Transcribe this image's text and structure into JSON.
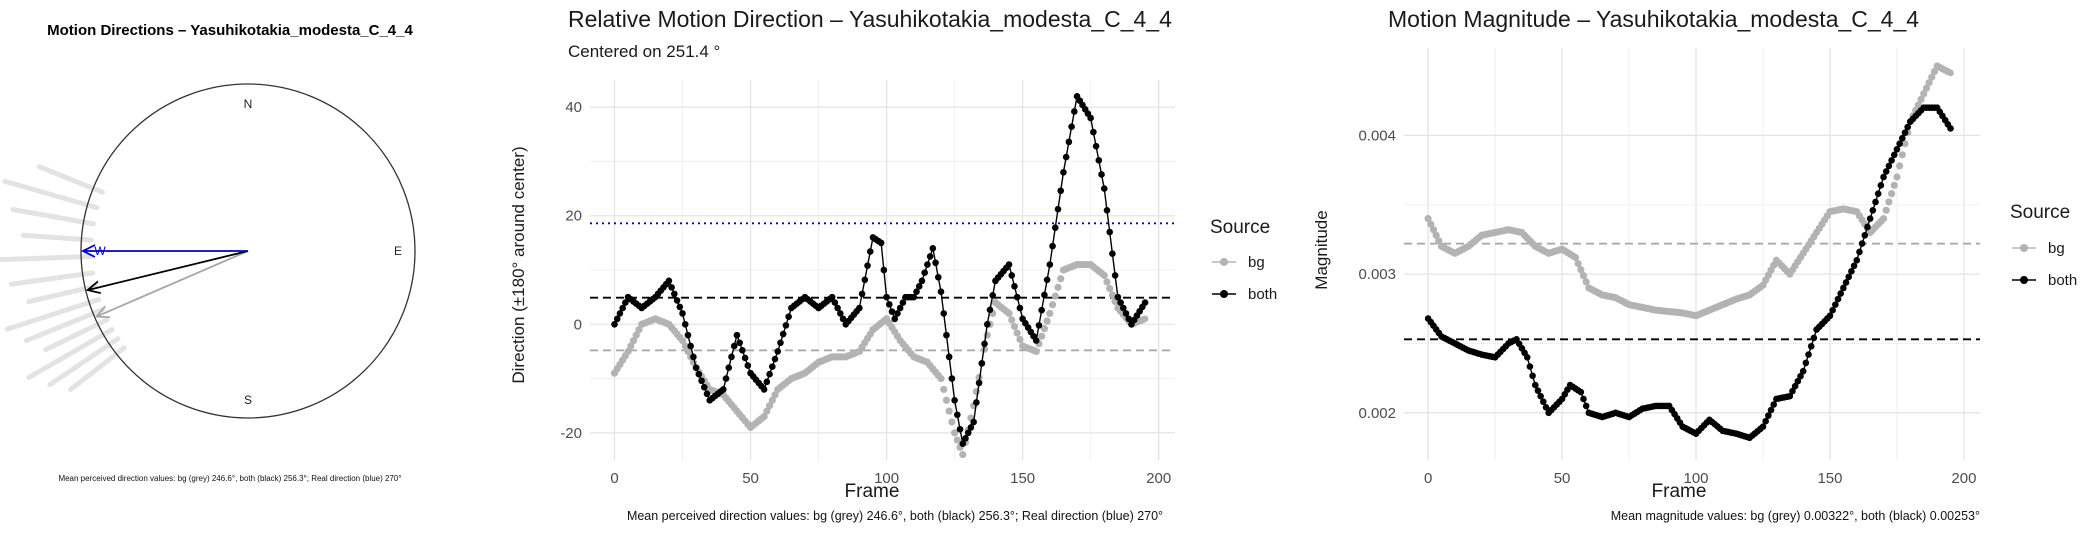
{
  "compass": {
    "title": "Motion Directions – Yasuhikotakia_modesta_C_4_4",
    "labels": {
      "north": "N",
      "east": "E",
      "south": "S",
      "west": "W"
    },
    "mean_bg_deg": 246.6,
    "mean_both_deg": 256.3,
    "real_deg": 270,
    "caption": "Mean perceived direction values: bg (grey) 246.6°, both (black) 256.3°; Real direction (blue) 270°",
    "colors": {
      "bg": "#a6a6a6",
      "both": "#000000",
      "real": "#0000cc",
      "rays": "#e3e3e3"
    }
  },
  "direction_plot": {
    "title": "Relative Motion Direction – Yasuhikotakia_modesta_C_4_4",
    "subtitle": "Centered on  251.4 °",
    "caption": "Mean perceived direction values: bg (grey) 246.6°, both (black) 256.3°; Real direction (blue) 270°",
    "legend_title": "Source",
    "legend_items": [
      "bg",
      "both"
    ]
  },
  "magnitude_plot": {
    "title": "Motion Magnitude – Yasuhikotakia_modesta_C_4_4",
    "caption": "Mean magnitude values: bg (grey) 0.00322°, both (black) 0.00253°",
    "legend_title": "Source",
    "legend_items": [
      "bg",
      "both"
    ]
  },
  "chart_data": [
    {
      "type": "line",
      "id": "relative-direction",
      "title": "Relative Motion Direction – Yasuhikotakia_modesta_C_4_4",
      "xlabel": "Frame",
      "ylabel": "Direction (±180° around center)",
      "xlim": [
        -9,
        206
      ],
      "ylim": [
        -25,
        45
      ],
      "xticks": [
        0,
        50,
        100,
        150,
        200
      ],
      "yticks": [
        -20,
        0,
        20,
        40
      ],
      "grid": true,
      "legend_position": "right",
      "hlines": [
        {
          "name": "real",
          "y": 18.6,
          "color": "#0000cc",
          "style": "dotted"
        },
        {
          "name": "both-mean",
          "y": 4.9,
          "color": "#000000",
          "style": "dashed"
        },
        {
          "name": "bg-mean",
          "y": -4.8,
          "color": "#a6a6a6",
          "style": "dashed"
        }
      ],
      "series": [
        {
          "name": "bg",
          "color": "#b3b3b3",
          "points": [
            [
              0,
              -9
            ],
            [
              5,
              -5
            ],
            [
              10,
              0
            ],
            [
              15,
              1
            ],
            [
              20,
              0
            ],
            [
              25,
              -3
            ],
            [
              30,
              -8
            ],
            [
              35,
              -12
            ],
            [
              40,
              -13
            ],
            [
              45,
              -16
            ],
            [
              50,
              -19
            ],
            [
              55,
              -17
            ],
            [
              60,
              -12
            ],
            [
              65,
              -10
            ],
            [
              70,
              -9
            ],
            [
              75,
              -7
            ],
            [
              80,
              -6
            ],
            [
              85,
              -6
            ],
            [
              90,
              -5
            ],
            [
              95,
              -1
            ],
            [
              100,
              1
            ],
            [
              105,
              -3
            ],
            [
              110,
              -6
            ],
            [
              115,
              -7
            ],
            [
              120,
              -10
            ],
            [
              125,
              -20
            ],
            [
              128,
              -24
            ],
            [
              132,
              -15
            ],
            [
              137,
              -2
            ],
            [
              140,
              4
            ],
            [
              145,
              2
            ],
            [
              150,
              -4
            ],
            [
              155,
              -5
            ],
            [
              160,
              2
            ],
            [
              165,
              10
            ],
            [
              170,
              11
            ],
            [
              175,
              11
            ],
            [
              180,
              9
            ],
            [
              185,
              3
            ],
            [
              190,
              0
            ],
            [
              195,
              1
            ]
          ]
        },
        {
          "name": "both",
          "color": "#000000",
          "points": [
            [
              0,
              0
            ],
            [
              5,
              5
            ],
            [
              10,
              3
            ],
            [
              15,
              5
            ],
            [
              20,
              8
            ],
            [
              25,
              2
            ],
            [
              30,
              -8
            ],
            [
              35,
              -14
            ],
            [
              40,
              -12
            ],
            [
              45,
              -2
            ],
            [
              50,
              -9
            ],
            [
              55,
              -12
            ],
            [
              60,
              -5
            ],
            [
              65,
              3
            ],
            [
              70,
              5
            ],
            [
              75,
              3
            ],
            [
              80,
              5
            ],
            [
              85,
              0
            ],
            [
              90,
              3
            ],
            [
              95,
              16
            ],
            [
              98,
              15
            ],
            [
              100,
              5
            ],
            [
              103,
              1
            ],
            [
              107,
              5
            ],
            [
              110,
              5
            ],
            [
              113,
              8
            ],
            [
              117,
              14
            ],
            [
              120,
              6
            ],
            [
              125,
              -14
            ],
            [
              128,
              -22
            ],
            [
              132,
              -18
            ],
            [
              137,
              0
            ],
            [
              140,
              8
            ],
            [
              145,
              11
            ],
            [
              150,
              1
            ],
            [
              155,
              -3
            ],
            [
              160,
              11
            ],
            [
              165,
              28
            ],
            [
              170,
              42
            ],
            [
              175,
              38
            ],
            [
              180,
              25
            ],
            [
              185,
              5
            ],
            [
              190,
              0
            ],
            [
              195,
              4
            ]
          ]
        }
      ]
    },
    {
      "type": "line",
      "id": "magnitude",
      "title": "Motion Magnitude – Yasuhikotakia_modesta_C_4_4",
      "xlabel": "Frame",
      "ylabel": "Magnitude",
      "xlim": [
        -9,
        206
      ],
      "ylim": [
        0.00166,
        0.00463
      ],
      "xticks": [
        0,
        50,
        100,
        150,
        200
      ],
      "yticks": [
        0.002,
        0.003,
        0.004
      ],
      "grid": true,
      "legend_position": "right",
      "hlines": [
        {
          "name": "bg-mean",
          "y": 0.00322,
          "color": "#a6a6a6",
          "style": "dashed"
        },
        {
          "name": "both-mean",
          "y": 0.00253,
          "color": "#000000",
          "style": "dashed"
        }
      ],
      "series": [
        {
          "name": "bg",
          "color": "#b3b3b3",
          "points": [
            [
              0,
              0.0034
            ],
            [
              5,
              0.0032
            ],
            [
              10,
              0.00315
            ],
            [
              15,
              0.0032
            ],
            [
              20,
              0.00328
            ],
            [
              25,
              0.0033
            ],
            [
              30,
              0.00332
            ],
            [
              35,
              0.0033
            ],
            [
              40,
              0.0032
            ],
            [
              45,
              0.00315
            ],
            [
              50,
              0.00318
            ],
            [
              55,
              0.00312
            ],
            [
              60,
              0.0029
            ],
            [
              65,
              0.00285
            ],
            [
              70,
              0.00283
            ],
            [
              75,
              0.00278
            ],
            [
              80,
              0.00276
            ],
            [
              85,
              0.00274
            ],
            [
              90,
              0.00273
            ],
            [
              95,
              0.00272
            ],
            [
              100,
              0.0027
            ],
            [
              105,
              0.00274
            ],
            [
              110,
              0.00278
            ],
            [
              115,
              0.00282
            ],
            [
              120,
              0.00285
            ],
            [
              125,
              0.00292
            ],
            [
              130,
              0.0031
            ],
            [
              135,
              0.003
            ],
            [
              140,
              0.00315
            ],
            [
              145,
              0.0033
            ],
            [
              150,
              0.00345
            ],
            [
              155,
              0.00347
            ],
            [
              160,
              0.00345
            ],
            [
              165,
              0.0033
            ],
            [
              170,
              0.0034
            ],
            [
              175,
              0.0037
            ],
            [
              180,
              0.0041
            ],
            [
              185,
              0.0043
            ],
            [
              190,
              0.0045
            ],
            [
              195,
              0.00445
            ]
          ]
        },
        {
          "name": "both",
          "color": "#000000",
          "points": [
            [
              0,
              0.00268
            ],
            [
              5,
              0.00255
            ],
            [
              10,
              0.0025
            ],
            [
              15,
              0.00245
            ],
            [
              20,
              0.00242
            ],
            [
              25,
              0.0024
            ],
            [
              30,
              0.0025
            ],
            [
              33,
              0.00253
            ],
            [
              37,
              0.0024
            ],
            [
              40,
              0.0022
            ],
            [
              45,
              0.002
            ],
            [
              50,
              0.0021
            ],
            [
              53,
              0.0022
            ],
            [
              57,
              0.00215
            ],
            [
              60,
              0.002
            ],
            [
              65,
              0.00197
            ],
            [
              70,
              0.002
            ],
            [
              75,
              0.00197
            ],
            [
              80,
              0.00203
            ],
            [
              85,
              0.00205
            ],
            [
              90,
              0.00205
            ],
            [
              95,
              0.0019
            ],
            [
              100,
              0.00185
            ],
            [
              105,
              0.00195
            ],
            [
              110,
              0.00187
            ],
            [
              115,
              0.00185
            ],
            [
              120,
              0.00182
            ],
            [
              125,
              0.0019
            ],
            [
              130,
              0.0021
            ],
            [
              135,
              0.00212
            ],
            [
              140,
              0.0023
            ],
            [
              145,
              0.0026
            ],
            [
              150,
              0.0027
            ],
            [
              155,
              0.0029
            ],
            [
              160,
              0.0031
            ],
            [
              165,
              0.0034
            ],
            [
              170,
              0.0037
            ],
            [
              175,
              0.0039
            ],
            [
              180,
              0.0041
            ],
            [
              185,
              0.0042
            ],
            [
              190,
              0.0042
            ],
            [
              195,
              0.00405
            ]
          ]
        }
      ]
    }
  ]
}
